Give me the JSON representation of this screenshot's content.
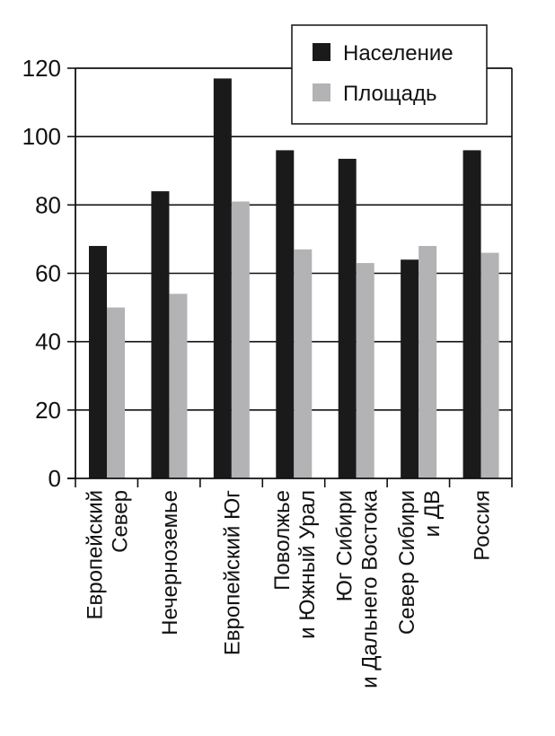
{
  "chart_data": {
    "type": "bar",
    "title": "",
    "xlabel": "",
    "ylabel": "",
    "ylim": [
      0,
      120
    ],
    "yticks": [
      0,
      20,
      40,
      60,
      80,
      100,
      120
    ],
    "grid": true,
    "legend_position": "top-right",
    "categories": [
      [
        "Европейский",
        "Север"
      ],
      [
        "Нечерноземье"
      ],
      [
        "Европейский Юг"
      ],
      [
        "Поволжье",
        "и Южный Урал"
      ],
      [
        "Юг Сибири",
        "и Дальнего Востока"
      ],
      [
        "Север Сибири",
        "и ДВ"
      ],
      [
        "Россия"
      ]
    ],
    "series": [
      {
        "name": "Население",
        "color": "#1a1a1a",
        "values": [
          68,
          84,
          117,
          96,
          93.5,
          64,
          96
        ]
      },
      {
        "name": "Площадь",
        "color": "#b3b3b5",
        "values": [
          50,
          54,
          81,
          67,
          63,
          68,
          66
        ]
      }
    ]
  }
}
